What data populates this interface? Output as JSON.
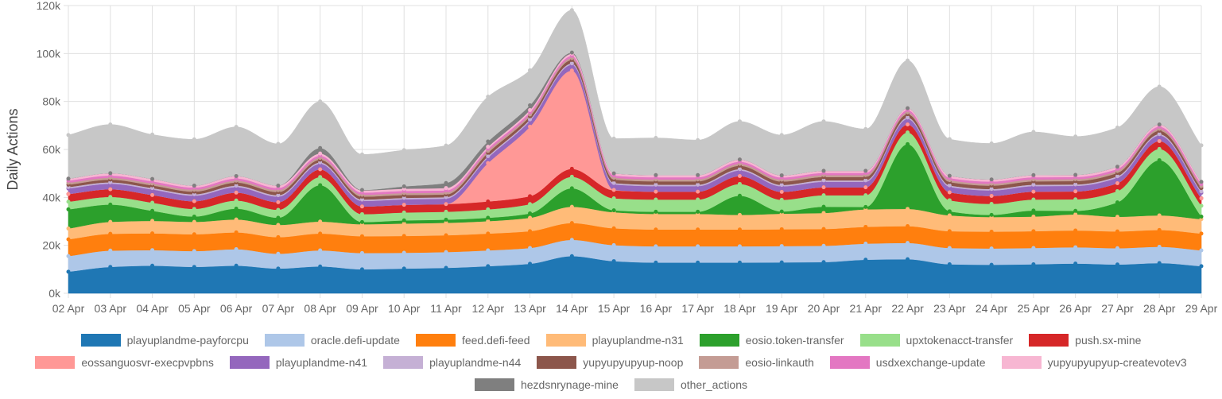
{
  "chart_data": {
    "type": "area",
    "stacked": true,
    "ylabel": "Daily Actions",
    "xlabel": "",
    "ylim": [
      0,
      120000
    ],
    "y_ticks": [
      "0k",
      "20k",
      "40k",
      "60k",
      "80k",
      "100k",
      "120k"
    ],
    "categories": [
      "02 Apr",
      "03 Apr",
      "04 Apr",
      "05 Apr",
      "06 Apr",
      "07 Apr",
      "08 Apr",
      "09 Apr",
      "10 Apr",
      "11 Apr",
      "12 Apr",
      "13 Apr",
      "14 Apr",
      "15 Apr",
      "16 Apr",
      "17 Apr",
      "18 Apr",
      "19 Apr",
      "20 Apr",
      "21 Apr",
      "22 Apr",
      "23 Apr",
      "24 Apr",
      "25 Apr",
      "26 Apr",
      "27 Apr",
      "28 Apr",
      "29 Apr"
    ],
    "series": [
      {
        "name": "playuplandme-payforcpu",
        "color": "#1f77b4",
        "values": [
          9000,
          11000,
          11500,
          11000,
          11500,
          10300,
          11200,
          10000,
          10300,
          10600,
          11300,
          12300,
          15500,
          13400,
          12800,
          12800,
          12800,
          12900,
          13000,
          14000,
          14200,
          12100,
          11900,
          12100,
          12400,
          12000,
          12600,
          11300
        ]
      },
      {
        "name": "oracle.defi-update",
        "color": "#aec7e8",
        "values": [
          6500,
          6800,
          6500,
          6600,
          6900,
          6200,
          6700,
          6800,
          6600,
          6600,
          6600,
          6600,
          6800,
          6700,
          6800,
          6800,
          6800,
          6800,
          6800,
          6700,
          6800,
          6800,
          6800,
          6800,
          6800,
          6800,
          6800,
          6600
        ]
      },
      {
        "name": "feed.defi-feed",
        "color": "#ff7f0e",
        "values": [
          7000,
          7000,
          7000,
          7000,
          7000,
          6900,
          7000,
          7000,
          7000,
          7000,
          7000,
          7000,
          7000,
          7000,
          7000,
          7000,
          7000,
          7000,
          7000,
          7000,
          7000,
          7000,
          7000,
          7000,
          7000,
          7000,
          7000,
          7000
        ]
      },
      {
        "name": "playuplandme-n31",
        "color": "#ffbb78",
        "values": [
          4500,
          5000,
          5200,
          5200,
          5400,
          5100,
          5000,
          5000,
          5200,
          5200,
          5200,
          5600,
          6800,
          6700,
          6500,
          6500,
          6100,
          6500,
          6700,
          7300,
          7200,
          6600,
          6100,
          6100,
          6700,
          6100,
          6100,
          6000
        ]
      },
      {
        "name": "eosio.token-transfer",
        "color": "#2ca02c",
        "values": [
          8000,
          7200,
          4200,
          2200,
          4500,
          3000,
          15200,
          900,
          1300,
          1300,
          1400,
          1800,
          7700,
          800,
          900,
          900,
          8000,
          900,
          2600,
          1000,
          27000,
          1700,
          900,
          2500,
          1500,
          6000,
          23000,
          1100
        ]
      },
      {
        "name": "upxtokenacct-transfer",
        "color": "#98df8a",
        "values": [
          3200,
          3200,
          3400,
          3200,
          3400,
          3300,
          3400,
          3300,
          3300,
          3300,
          3500,
          3900,
          4800,
          5000,
          5100,
          5100,
          4900,
          4900,
          4800,
          4900,
          4900,
          4600,
          4600,
          4600,
          4800,
          4700,
          4700,
          4500
        ]
      },
      {
        "name": "push.sx-mine",
        "color": "#d62728",
        "values": [
          3200,
          3200,
          3200,
          3200,
          3300,
          3200,
          3200,
          3200,
          3200,
          3200,
          3300,
          3300,
          3300,
          3300,
          3300,
          3300,
          3300,
          3300,
          3300,
          3300,
          3300,
          3300,
          3300,
          3300,
          3300,
          3300,
          3300,
          3100
        ]
      },
      {
        "name": "eossanguosvr-execpvpbns",
        "color": "#ff9896",
        "values": [
          0,
          0,
          0,
          0,
          0,
          0,
          0,
          0,
          0,
          0,
          16000,
          29000,
          41000,
          200,
          0,
          0,
          0,
          0,
          0,
          0,
          0,
          0,
          0,
          0,
          0,
          0,
          0,
          0
        ]
      },
      {
        "name": "playuplandme-n41",
        "color": "#9467bd",
        "values": [
          2300,
          2300,
          2300,
          2300,
          2300,
          2300,
          2300,
          2300,
          2300,
          2300,
          2300,
          2400,
          2400,
          2300,
          2300,
          2300,
          2300,
          2300,
          2300,
          2300,
          2300,
          2300,
          2300,
          2300,
          2300,
          2300,
          2300,
          2300
        ]
      },
      {
        "name": "playuplandme-n44",
        "color": "#c5b0d5",
        "values": [
          600,
          600,
          600,
          600,
          600,
          600,
          600,
          600,
          600,
          600,
          600,
          600,
          600,
          600,
          600,
          600,
          600,
          600,
          600,
          600,
          600,
          600,
          600,
          600,
          600,
          600,
          600,
          600
        ]
      },
      {
        "name": "yupyupyupyup-noop",
        "color": "#8c564b",
        "values": [
          1000,
          1100,
          1100,
          1100,
          1300,
          1300,
          1100,
          1200,
          1200,
          1100,
          1400,
          1300,
          1400,
          1400,
          1400,
          1400,
          1400,
          1400,
          1400,
          1400,
          1400,
          1400,
          1400,
          1400,
          1400,
          1400,
          1400,
          1400
        ]
      },
      {
        "name": "eosio-linkauth",
        "color": "#c49c94",
        "values": [
          800,
          800,
          800,
          800,
          800,
          800,
          800,
          800,
          800,
          800,
          800,
          800,
          800,
          800,
          800,
          800,
          800,
          800,
          800,
          800,
          800,
          800,
          800,
          800,
          800,
          800,
          800,
          800
        ]
      },
      {
        "name": "usdxexchange-update",
        "color": "#e377c2",
        "values": [
          900,
          900,
          900,
          900,
          900,
          900,
          900,
          900,
          900,
          900,
          900,
          900,
          900,
          900,
          900,
          900,
          900,
          900,
          900,
          900,
          900,
          900,
          900,
          900,
          900,
          900,
          900,
          900
        ]
      },
      {
        "name": "yupyupyupyup-createvotev3",
        "color": "#f7b6d2",
        "values": [
          800,
          1000,
          1000,
          800,
          1000,
          1000,
          900,
          900,
          900,
          1000,
          800,
          900,
          900,
          900,
          900,
          900,
          900,
          900,
          900,
          900,
          800,
          900,
          900,
          900,
          900,
          900,
          900,
          900
        ]
      },
      {
        "name": "hezdsnrynage-mine",
        "color": "#7f7f7f",
        "values": [
          0,
          0,
          0,
          0,
          0,
          0,
          2300,
          200,
          1000,
          2100,
          2200,
          2000,
          500,
          0,
          0,
          0,
          0,
          0,
          0,
          0,
          0,
          0,
          0,
          0,
          0,
          0,
          0,
          0
        ]
      },
      {
        "name": "other_actions",
        "color": "#c7c7c7",
        "values": [
          18200,
          20300,
          18500,
          19300,
          20500,
          17400,
          19400,
          14800,
          15100,
          15600,
          18700,
          14600,
          17700,
          14500,
          15500,
          14600,
          15900,
          16800,
          20600,
          17400,
          19900,
          15300,
          15000,
          18000,
          16000,
          16300,
          15800,
          15200
        ]
      }
    ]
  }
}
